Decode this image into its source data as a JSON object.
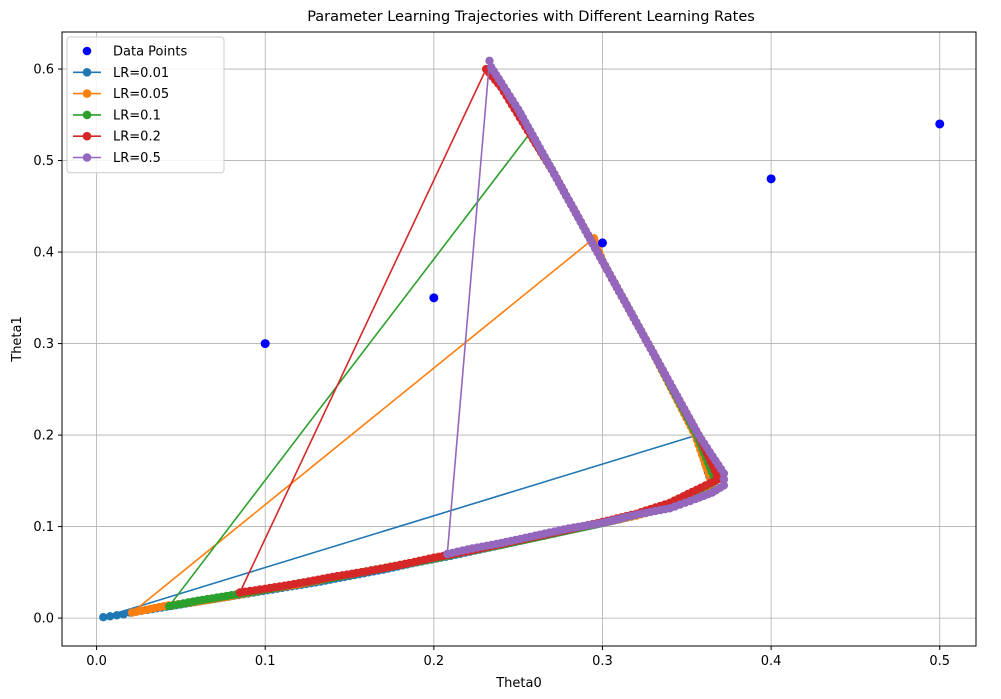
{
  "chart_data": {
    "type": "line",
    "title": "Parameter Learning Trajectories with Different Learning Rates",
    "xlabel": "Theta0",
    "ylabel": "Theta1",
    "xlim": [
      -0.0205,
      0.5215
    ],
    "ylim": [
      -0.0305,
      0.6405
    ],
    "xticks": [
      "0.0",
      "0.1",
      "0.2",
      "0.3",
      "0.4",
      "0.5"
    ],
    "xtick_values": [
      0.0,
      0.1,
      0.2,
      0.3,
      0.4,
      0.5
    ],
    "yticks": [
      "0.0",
      "0.1",
      "0.2",
      "0.3",
      "0.4",
      "0.5",
      "0.6"
    ],
    "ytick_values": [
      0.0,
      0.1,
      0.2,
      0.3,
      0.4,
      0.5,
      0.6
    ],
    "grid": true,
    "legend_position": "top-left",
    "scatter": {
      "name": "Data Points",
      "color": "#0000ff",
      "x": [
        0.1,
        0.2,
        0.3,
        0.4,
        0.5
      ],
      "y": [
        0.3,
        0.35,
        0.41,
        0.48,
        0.54
      ]
    },
    "series": [
      {
        "name": "LR=0.01",
        "color": "#1f77b4",
        "x": [
          0.004,
          0.008,
          0.012,
          0.016,
          0.02,
          0.03,
          0.05,
          0.07,
          0.09,
          0.11,
          0.13,
          0.15,
          0.17,
          0.19,
          0.21,
          0.23,
          0.25,
          0.27,
          0.29,
          0.31,
          0.33,
          0.35,
          0.365,
          0.356,
          0.004
        ],
        "y": [
          0.001,
          0.002,
          0.003,
          0.004,
          0.006,
          0.009,
          0.015,
          0.021,
          0.027,
          0.033,
          0.039,
          0.046,
          0.053,
          0.061,
          0.068,
          0.076,
          0.084,
          0.092,
          0.1,
          0.108,
          0.118,
          0.128,
          0.145,
          0.2,
          0.001
        ]
      },
      {
        "name": "LR=0.05",
        "color": "#ff7f0e",
        "x": [
          0.021,
          0.04,
          0.06,
          0.08,
          0.1,
          0.12,
          0.14,
          0.16,
          0.18,
          0.2,
          0.22,
          0.24,
          0.26,
          0.28,
          0.3,
          0.32,
          0.34,
          0.365,
          0.355,
          0.33,
          0.3,
          0.295,
          0.021
        ],
        "y": [
          0.006,
          0.013,
          0.018,
          0.024,
          0.031,
          0.037,
          0.044,
          0.051,
          0.058,
          0.065,
          0.073,
          0.08,
          0.088,
          0.096,
          0.104,
          0.112,
          0.122,
          0.147,
          0.2,
          0.29,
          0.39,
          0.415,
          0.006
        ]
      },
      {
        "name": "LR=0.1",
        "color": "#2ca02c",
        "x": [
          0.043,
          0.06,
          0.08,
          0.1,
          0.12,
          0.14,
          0.16,
          0.18,
          0.2,
          0.22,
          0.24,
          0.26,
          0.28,
          0.3,
          0.32,
          0.34,
          0.367,
          0.356,
          0.33,
          0.3,
          0.27,
          0.257,
          0.043
        ],
        "y": [
          0.013,
          0.019,
          0.025,
          0.031,
          0.038,
          0.044,
          0.051,
          0.058,
          0.065,
          0.073,
          0.08,
          0.088,
          0.096,
          0.104,
          0.113,
          0.124,
          0.15,
          0.2,
          0.29,
          0.39,
          0.49,
          0.53,
          0.013
        ]
      },
      {
        "name": "LR=0.2",
        "color": "#d62728",
        "x": [
          0.085,
          0.1,
          0.12,
          0.14,
          0.16,
          0.18,
          0.2,
          0.22,
          0.24,
          0.26,
          0.28,
          0.3,
          0.32,
          0.34,
          0.369,
          0.357,
          0.33,
          0.3,
          0.27,
          0.24,
          0.231,
          0.085
        ],
        "y": [
          0.028,
          0.032,
          0.038,
          0.045,
          0.051,
          0.058,
          0.066,
          0.073,
          0.081,
          0.089,
          0.097,
          0.105,
          0.114,
          0.126,
          0.152,
          0.2,
          0.29,
          0.39,
          0.49,
          0.58,
          0.6,
          0.028
        ]
      },
      {
        "name": "LR=0.5",
        "color": "#9467bd",
        "x": [
          0.208,
          0.22,
          0.24,
          0.26,
          0.28,
          0.3,
          0.32,
          0.34,
          0.355,
          0.365,
          0.372,
          0.372,
          0.357,
          0.33,
          0.3,
          0.27,
          0.25,
          0.24,
          0.234,
          0.233,
          0.208
        ],
        "y": [
          0.07,
          0.075,
          0.082,
          0.09,
          0.098,
          0.104,
          0.113,
          0.12,
          0.13,
          0.137,
          0.145,
          0.158,
          0.2,
          0.29,
          0.39,
          0.49,
          0.556,
          0.585,
          0.602,
          0.609,
          0.07
        ]
      }
    ]
  }
}
